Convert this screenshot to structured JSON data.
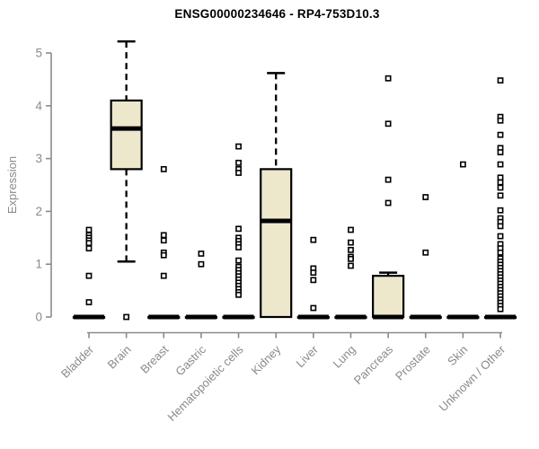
{
  "chart_data": {
    "type": "boxplot",
    "title": "ENSG00000234646 - RP4-753D10.3",
    "ylabel": "Expression",
    "xlabel": "",
    "ylim": [
      0,
      5.4
    ],
    "yticks": [
      0,
      1,
      2,
      3,
      4,
      5
    ],
    "grid": false,
    "legend": "none",
    "colors": {
      "box_fill": "#EDE8CC",
      "box_stroke": "#000000",
      "median": "#000000",
      "outlier_fill": "#ffffff",
      "axis": "#8a8a8a",
      "tick_label": "#8a8a8a",
      "title": "#000000",
      "background": "#ffffff"
    },
    "categories": [
      "Bladder",
      "Brain",
      "Breast",
      "Gastric",
      "Hematopoietic cells",
      "Kidney",
      "Liver",
      "Lung",
      "Pancreas",
      "Prostate",
      "Skin",
      "Unknown / Other"
    ],
    "boxes": [
      {
        "category": "Bladder",
        "q1": 0,
        "median": 0,
        "q3": 0,
        "whisker_low": 0,
        "whisker_high": 0,
        "outliers": [
          1.65,
          1.55,
          1.5,
          1.45,
          1.4,
          1.3,
          0.78,
          0.28
        ]
      },
      {
        "category": "Brain",
        "q1": 2.8,
        "median": 3.57,
        "q3": 4.1,
        "whisker_low": 1.05,
        "whisker_high": 5.22,
        "outliers": [
          0
        ]
      },
      {
        "category": "Breast",
        "q1": 0,
        "median": 0,
        "q3": 0,
        "whisker_low": 0,
        "whisker_high": 0,
        "outliers": [
          2.8,
          1.55,
          1.45,
          1.22,
          1.17,
          0.78
        ]
      },
      {
        "category": "Gastric",
        "q1": 0,
        "median": 0,
        "q3": 0,
        "whisker_low": 0,
        "whisker_high": 0,
        "outliers": [
          1.2,
          1.0
        ]
      },
      {
        "category": "Hematopoietic cells",
        "q1": 0,
        "median": 0,
        "q3": 0,
        "whisker_low": 0,
        "whisker_high": 0,
        "outliers": [
          3.23,
          2.92,
          2.8,
          2.73,
          1.67,
          1.5,
          1.44,
          1.38,
          1.32,
          1.07,
          0.95,
          0.89,
          0.83,
          0.77,
          0.71,
          0.65,
          0.59,
          0.53,
          0.47,
          0.42
        ]
      },
      {
        "category": "Kidney",
        "q1": 0,
        "median": 1.82,
        "q3": 2.8,
        "whisker_low": 0,
        "whisker_high": 4.62,
        "outliers": []
      },
      {
        "category": "Liver",
        "q1": 0,
        "median": 0,
        "q3": 0,
        "whisker_low": 0,
        "whisker_high": 0,
        "outliers": [
          1.46,
          0.92,
          0.84,
          0.7,
          0.17
        ]
      },
      {
        "category": "Lung",
        "q1": 0,
        "median": 0,
        "q3": 0,
        "whisker_low": 0,
        "whisker_high": 0,
        "outliers": [
          1.65,
          1.41,
          1.27,
          1.14,
          1.1,
          0.97
        ]
      },
      {
        "category": "Pancreas",
        "q1": 0,
        "median": 0,
        "q3": 0.78,
        "whisker_low": 0,
        "whisker_high": 0.84,
        "outliers": [
          4.52,
          3.66,
          2.6,
          2.16
        ]
      },
      {
        "category": "Prostate",
        "q1": 0,
        "median": 0,
        "q3": 0,
        "whisker_low": 0,
        "whisker_high": 0,
        "outliers": [
          2.27,
          1.22
        ]
      },
      {
        "category": "Skin",
        "q1": 0,
        "median": 0,
        "q3": 0,
        "whisker_low": 0,
        "whisker_high": 0,
        "outliers": [
          2.89
        ]
      },
      {
        "category": "Unknown / Other",
        "q1": 0,
        "median": 0,
        "q3": 0,
        "whisker_low": 0,
        "whisker_high": 0,
        "outliers": [
          4.48,
          3.79,
          3.72,
          3.45,
          3.2,
          3.12,
          2.89,
          2.64,
          2.55,
          2.45,
          2.3,
          2.02,
          1.87,
          1.8,
          1.72,
          1.53,
          1.38,
          1.3,
          1.22,
          1.11,
          1.05,
          0.99,
          0.93,
          0.87,
          0.81,
          0.75,
          0.69,
          0.63,
          0.57,
          0.51,
          0.45,
          0.39,
          0.33,
          0.27,
          0.21,
          0.15
        ]
      }
    ]
  }
}
